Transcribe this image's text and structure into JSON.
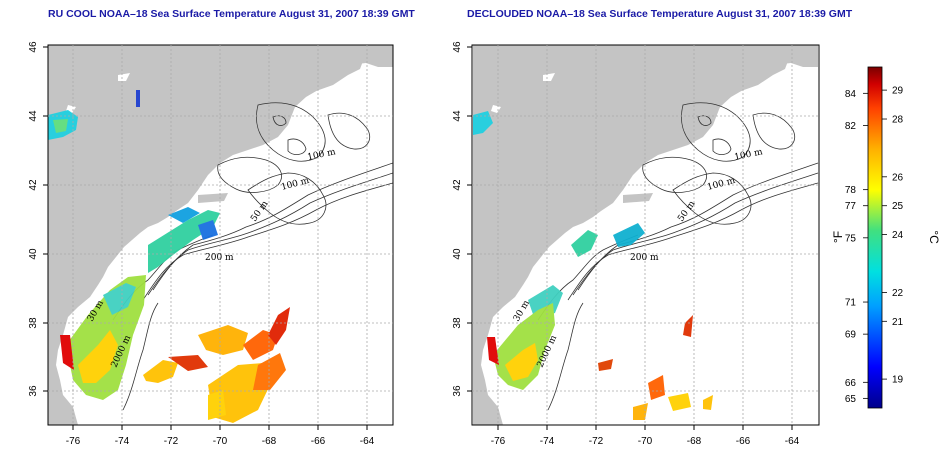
{
  "titles": {
    "left": "RU COOL NOAA–18 Sea Surface Temperature August 31, 2007 18:39 GMT",
    "right": "DECLOUDED NOAA–18 Sea Surface Temperature August 31, 2007 18:39 GMT"
  },
  "axes": {
    "lon_ticks": [
      "-76",
      "-74",
      "-72",
      "-70",
      "-68",
      "-66",
      "-64"
    ],
    "lat_ticks": [
      "36",
      "38",
      "40",
      "42",
      "44",
      "46"
    ]
  },
  "contour_labels": [
    "100 m",
    "100 m",
    "50 m",
    "200 m",
    "30 m",
    "2000 m"
  ],
  "colorbar": {
    "f_label": "°F",
    "c_label": "°C",
    "f_ticks": [
      "84",
      "82",
      "78",
      "77",
      "75",
      "71",
      "69",
      "66",
      "65"
    ],
    "c_ticks": [
      "29",
      "28",
      "26",
      "25",
      "24",
      "22",
      "21",
      "19"
    ],
    "c_range": [
      18.0,
      29.8
    ]
  },
  "colors": {
    "land": "#c4c4c4",
    "ocean": "#ffffff",
    "title": "#1a1aa6",
    "grid": "#aaaaaa"
  }
}
